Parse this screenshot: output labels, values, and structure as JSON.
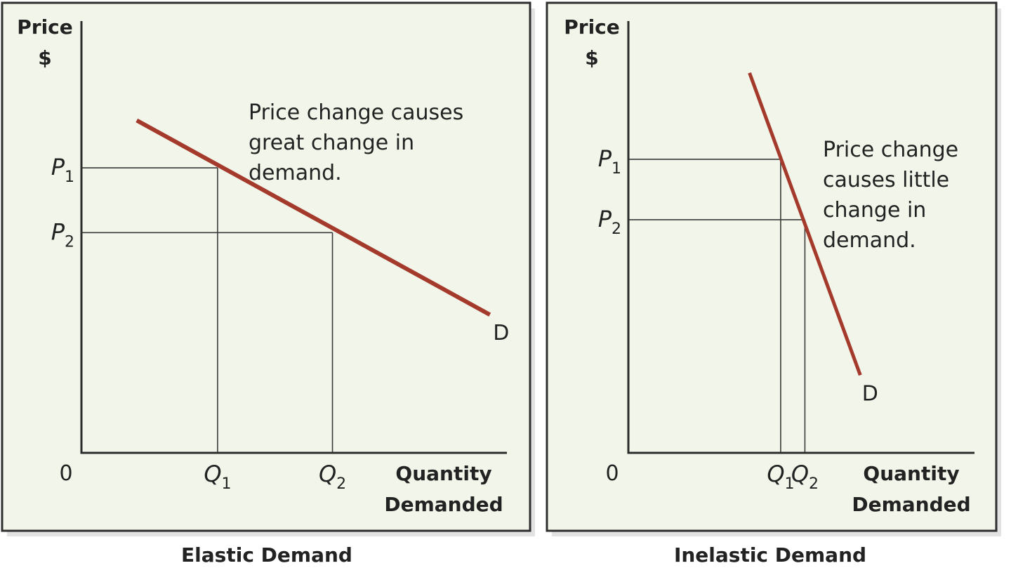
{
  "colors": {
    "curve": "#a43a2c"
  },
  "chart_data": [
    {
      "type": "line",
      "title": "Elastic Demand",
      "ylabel": [
        "Price",
        "$"
      ],
      "xlabel": [
        "Quantity",
        "Demanded"
      ],
      "origin_label": "0",
      "xlim": [
        0,
        10
      ],
      "ylim": [
        0,
        10
      ],
      "series": [
        {
          "name": "D",
          "x": [
            1.3,
            9.6
          ],
          "y": [
            7.7,
            3.2
          ]
        }
      ],
      "points": [
        {
          "p_label": "P",
          "p_sub": "1",
          "q_label": "Q",
          "q_sub": "1",
          "x": 3.2,
          "y": 6.6
        },
        {
          "p_label": "P",
          "p_sub": "2",
          "q_label": "Q",
          "q_sub": "2",
          "x": 5.9,
          "y": 5.1
        }
      ],
      "annotation": [
        "Price change causes",
        "great change in",
        "demand."
      ]
    },
    {
      "type": "line",
      "title": "Inelastic Demand",
      "ylabel": [
        "Price",
        "$"
      ],
      "xlabel": [
        "Quantity",
        "Demanded"
      ],
      "origin_label": "0",
      "xlim": [
        0,
        10
      ],
      "ylim": [
        0,
        10
      ],
      "series": [
        {
          "name": "D",
          "x": [
            3.5,
            6.7
          ],
          "y": [
            8.8,
            1.8
          ]
        }
      ],
      "points": [
        {
          "p_label": "P",
          "p_sub": "1",
          "q_label": "Q",
          "q_sub": "1",
          "x": 4.4,
          "y": 6.8
        },
        {
          "p_label": "P",
          "p_sub": "2",
          "q_label": "Q",
          "q_sub": "2",
          "x": 5.1,
          "y": 5.4
        }
      ],
      "annotation": [
        "Price change",
        "causes little",
        "change in",
        "demand."
      ]
    }
  ]
}
